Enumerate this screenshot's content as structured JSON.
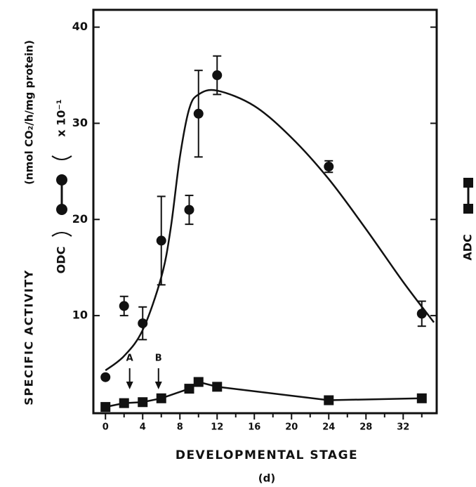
{
  "chart_data": {
    "type": "scatter-line",
    "xlabel": "DEVELOPMENTAL STAGE",
    "caption": "(d)",
    "ylabel": "SPECIFIC ACTIVITY",
    "yunit": "(nmol CO₂/h/mg protein)",
    "scale_note": "x 10⁻¹",
    "xlim": [
      -1.3,
      35.6
    ],
    "ylim": [
      -0.15,
      41.8
    ],
    "xticks": [
      0,
      4,
      8,
      12,
      16,
      20,
      24,
      28,
      32
    ],
    "xminorticks": [
      2,
      6,
      10,
      14,
      18,
      22,
      26,
      30,
      34
    ],
    "yticks": [
      10,
      20,
      30,
      40
    ],
    "color": "#111111",
    "series": [
      {
        "name": "ODC",
        "marker": "circle",
        "x": [
          0,
          2,
          4,
          6,
          9,
          10,
          12,
          24,
          34
        ],
        "values": [
          3.6,
          11.0,
          9.2,
          17.8,
          21.0,
          31.0,
          35.0,
          25.5,
          10.2
        ],
        "errors": [
          null,
          1.0,
          1.7,
          4.6,
          1.5,
          4.5,
          2.0,
          0.6,
          1.3
        ]
      },
      {
        "name": "ADC",
        "marker": "square",
        "connect": true,
        "x": [
          0,
          2,
          4,
          6,
          9,
          10,
          12,
          24,
          34
        ],
        "values": [
          0.5,
          0.9,
          1.0,
          1.4,
          2.4,
          3.1,
          2.6,
          1.2,
          1.4
        ]
      }
    ],
    "curve": {
      "x": [
        0,
        2,
        4,
        6,
        7,
        8,
        9,
        10,
        12,
        16,
        20,
        24,
        28,
        32,
        35.3
      ],
      "values": [
        4.3,
        5.8,
        8.5,
        14.0,
        19.0,
        26.5,
        31.5,
        33.0,
        33.4,
        31.8,
        28.5,
        24.2,
        19.0,
        13.5,
        9.3
      ]
    },
    "annotations": [
      {
        "text": "A",
        "x": 2.6
      },
      {
        "text": "B",
        "x": 5.7
      }
    ]
  }
}
